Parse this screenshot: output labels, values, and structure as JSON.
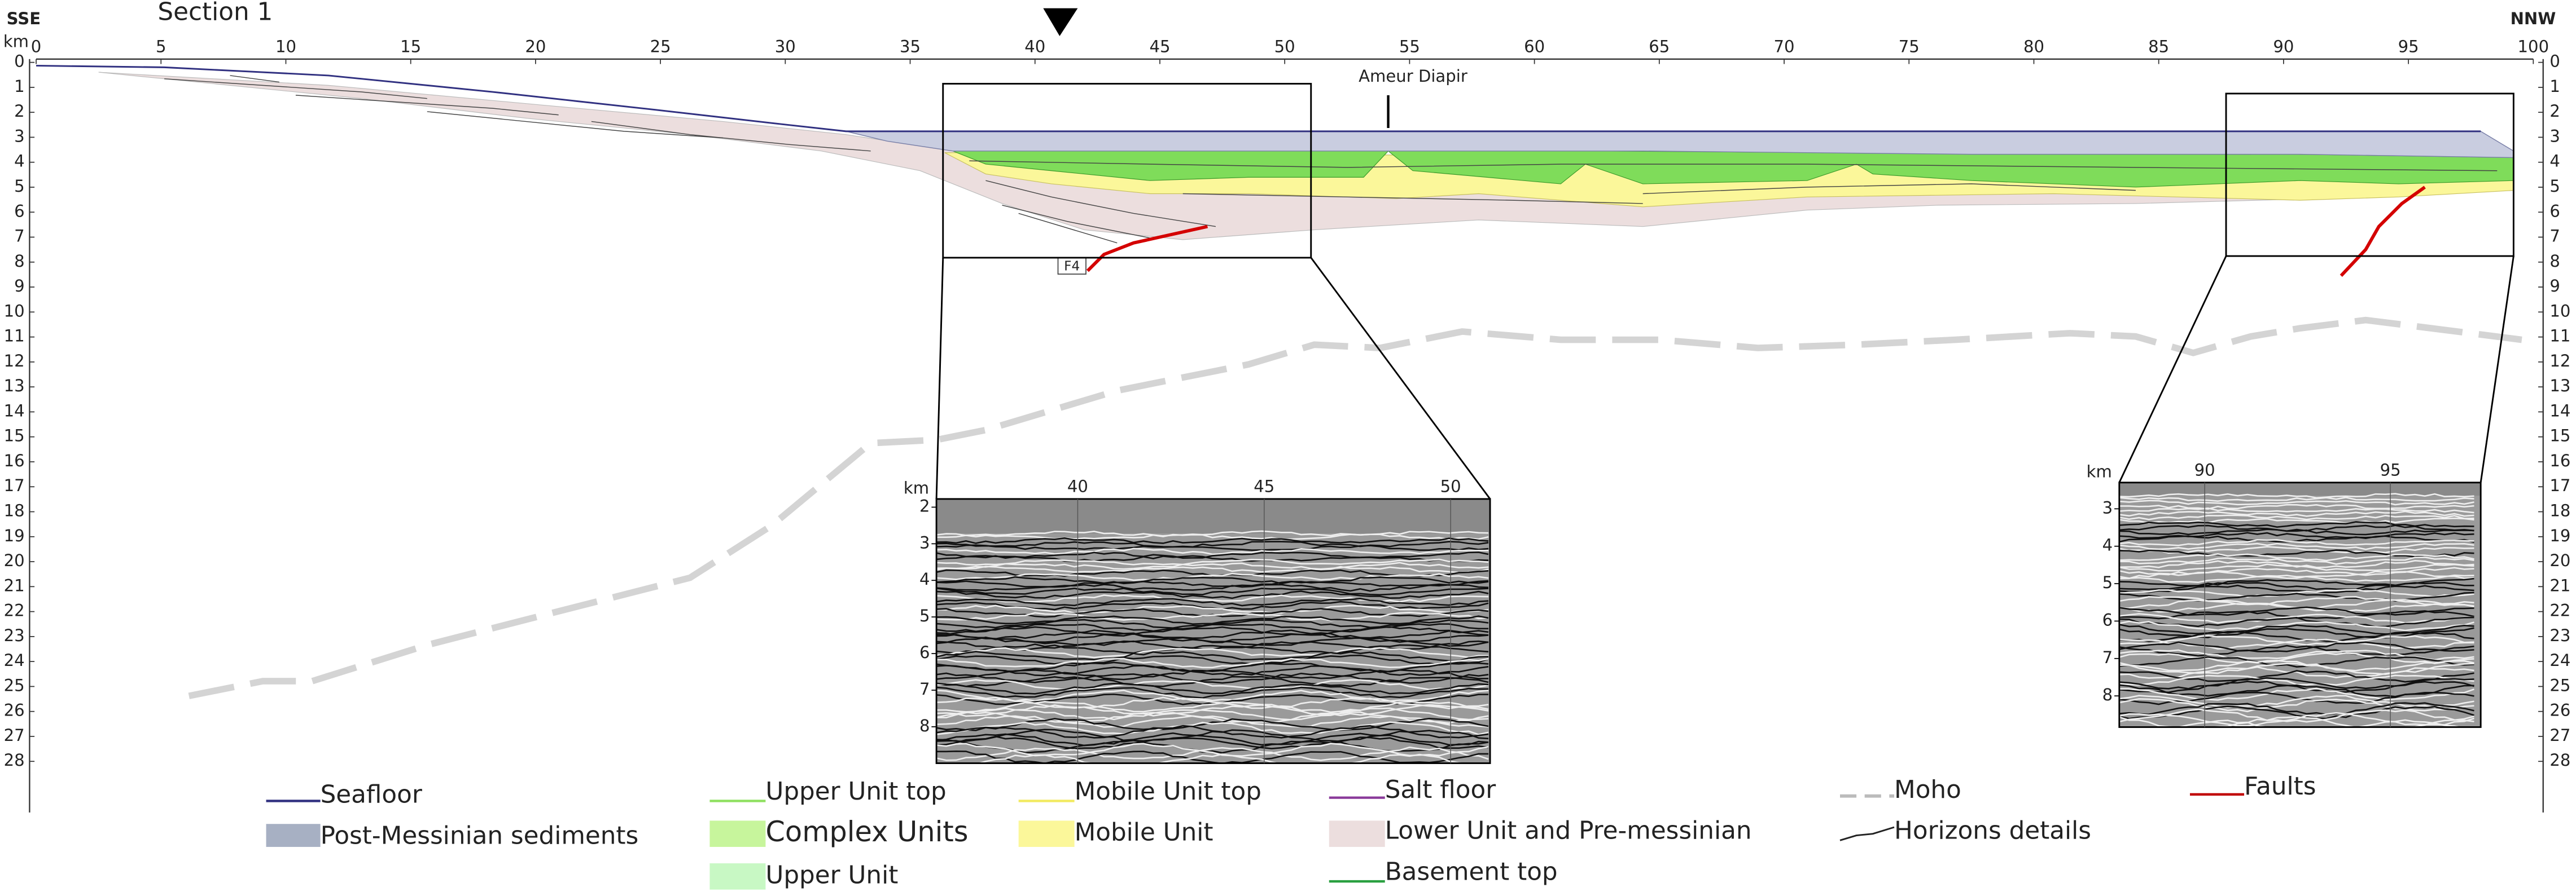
{
  "header": {
    "left": "SSE",
    "right": "NNW",
    "title": "Section 1"
  },
  "axes": {
    "distance_unit": "km",
    "distance_ticks": [
      0,
      5,
      10,
      15,
      20,
      25,
      30,
      35,
      40,
      45,
      50,
      55,
      60,
      65,
      70,
      75,
      80,
      85,
      90,
      95,
      100
    ],
    "depth_unit": "km",
    "depth_ticks": [
      0,
      1,
      2,
      3,
      4,
      5,
      6,
      7,
      8,
      9,
      10,
      11,
      12,
      13,
      14,
      15,
      16,
      17,
      18,
      19,
      20,
      21,
      22,
      23,
      24,
      25,
      26,
      27,
      28
    ]
  },
  "annotations": {
    "diapir": "Ameur Diapir",
    "fault": "F4"
  },
  "insets": [
    {
      "unit": "km",
      "x_ticks": [
        40,
        45,
        50
      ],
      "y_ticks": [
        2,
        3,
        4,
        5,
        6,
        7,
        8
      ]
    },
    {
      "unit": "km",
      "x_ticks": [
        90,
        95
      ],
      "y_ticks": [
        3,
        4,
        5,
        6,
        7,
        8
      ]
    }
  ],
  "legend": [
    "Seafloor",
    "Post-Messinian sediments",
    "Upper Unit top",
    "Complex Units",
    "Upper Unit",
    "Mobile Unit top",
    "Mobile Unit",
    "Salt floor",
    "Lower Unit and Pre-messinian",
    "Basement top",
    "Moho",
    "Horizons details",
    "Faults"
  ]
}
